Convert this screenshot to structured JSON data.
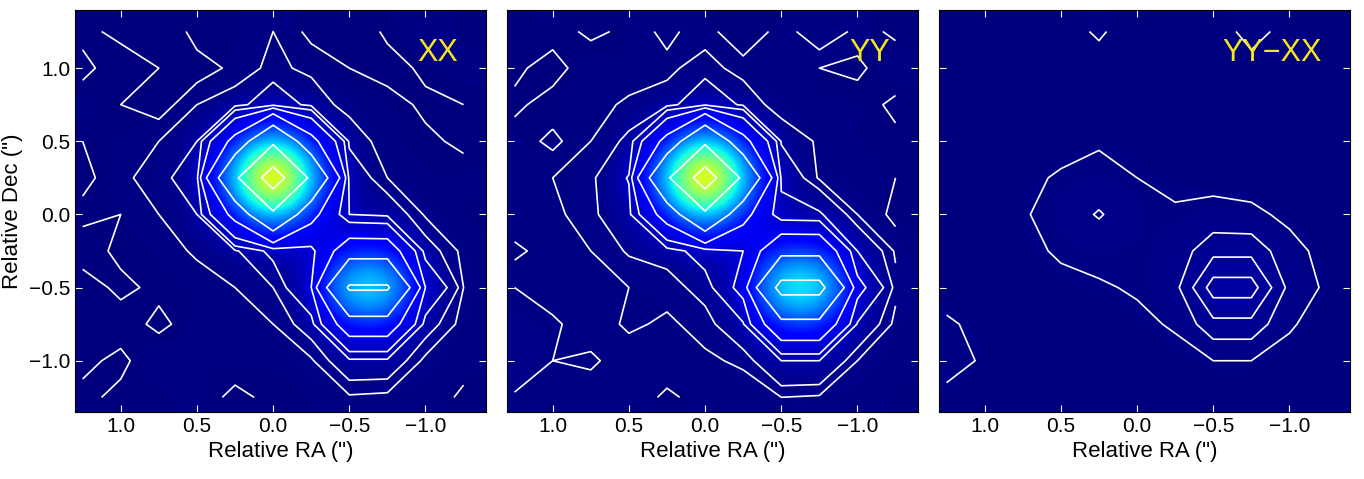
{
  "chart_data": [
    {
      "type": "heatmap",
      "title": "XX",
      "xlabel": "Relative RA (\")",
      "ylabel": "Relative Dec (\")",
      "x": [
        1.25,
        1.0,
        0.75,
        0.5,
        0.25,
        0.0,
        -0.25,
        -0.5,
        -0.75,
        -1.0,
        -1.25
      ],
      "y": [
        1.25,
        1.0,
        0.75,
        0.5,
        0.25,
        0.0,
        -0.25,
        -0.5,
        -0.75,
        -1.0,
        -1.25
      ],
      "cells": [
        [
          0.004,
          0.002,
          -0.002,
          0.005,
          0.003,
          0.006,
          0.002,
          -0.001,
          0.004,
          0.006,
          0.003
        ],
        [
          0.002,
          0.005,
          0.003,
          0.001,
          0.004,
          0.007,
          0.005,
          0.003,
          0.001,
          0.004,
          0.005
        ],
        [
          0.005,
          0.003,
          0.001,
          0.006,
          0.008,
          0.02,
          0.009,
          0.004,
          0.005,
          0.002,
          0.003
        ],
        [
          0.003,
          0.004,
          0.006,
          0.012,
          0.12,
          0.34,
          0.12,
          0.01,
          0.003,
          0.004,
          0.002
        ],
        [
          0.002,
          0.005,
          0.008,
          0.02,
          0.34,
          1.0,
          0.34,
          0.02,
          0.006,
          0.003,
          0.005
        ],
        [
          0.004,
          0.003,
          0.006,
          0.012,
          0.12,
          0.34,
          0.12,
          0.025,
          0.02,
          0.005,
          0.003
        ],
        [
          0.001,
          0.004,
          0.003,
          0.007,
          0.01,
          0.03,
          0.04,
          0.14,
          0.14,
          0.017,
          0.004
        ],
        [
          0.005,
          0.002,
          0.004,
          0.003,
          0.006,
          0.012,
          0.05,
          0.42,
          0.42,
          0.05,
          0.006
        ],
        [
          0.003,
          0.005,
          0.002,
          0.005,
          0.004,
          0.006,
          0.017,
          0.14,
          0.14,
          0.017,
          0.003
        ],
        [
          0.004,
          0.002,
          0.006,
          0.003,
          0.005,
          0.003,
          0.005,
          0.02,
          0.02,
          0.004,
          0.005
        ],
        [
          0.002,
          0.004,
          0.003,
          0.005,
          0.002,
          0.004,
          0.003,
          0.005,
          0.004,
          0.006,
          0.002
        ]
      ],
      "clim": [
        0,
        1.0
      ],
      "contour_levels": [
        0.003,
        0.006,
        0.012,
        0.025,
        0.05,
        0.1,
        0.2,
        0.4,
        0.8
      ],
      "xlim": [
        1.3,
        -1.4
      ],
      "ylim": [
        -1.35,
        1.4
      ],
      "xticks": [
        {
          "value": 1.0,
          "label": "1.0"
        },
        {
          "value": 0.5,
          "label": "0.5"
        },
        {
          "value": 0.0,
          "label": "0.0"
        },
        {
          "value": -0.5,
          "label": "−0.5"
        },
        {
          "value": -1.0,
          "label": "−1.0"
        }
      ],
      "yticks": [
        {
          "value": 1.0,
          "label": "1.0"
        },
        {
          "value": 0.5,
          "label": "0.5"
        },
        {
          "value": 0.0,
          "label": "0.0"
        },
        {
          "value": -0.5,
          "label": "−0.5"
        },
        {
          "value": -1.0,
          "label": "−1.0"
        }
      ]
    },
    {
      "type": "heatmap",
      "title": "YY",
      "xlabel": "Relative RA (\")",
      "tick_labels": "x",
      "x": [
        1.25,
        1.0,
        0.75,
        0.5,
        0.25,
        0.0,
        -0.25,
        -0.5,
        -0.75,
        -1.0,
        -1.25
      ],
      "y": [
        1.25,
        1.0,
        0.75,
        0.5,
        0.25,
        0.0,
        -0.25,
        -0.5,
        -0.75,
        -1.0,
        -1.25
      ],
      "cells": [
        [
          0.003,
          0.005,
          0.002,
          0.004,
          0.007,
          0.004,
          0.001,
          0.004,
          0.009,
          0.005,
          0.002
        ],
        [
          0.004,
          0.001,
          0.006,
          0.003,
          0.005,
          0.008,
          0.004,
          0.006,
          0.003,
          0.002,
          0.006
        ],
        [
          0.002,
          0.005,
          0.004,
          0.007,
          0.008,
          0.022,
          0.01,
          0.003,
          0.004,
          0.005,
          0.002
        ],
        [
          0.005,
          0.002,
          0.006,
          0.014,
          0.12,
          0.34,
          0.12,
          0.011,
          0.005,
          0.003,
          0.004
        ],
        [
          0.003,
          0.006,
          0.01,
          0.026,
          0.35,
          1.0,
          0.34,
          0.022,
          0.005,
          0.006,
          0.003
        ],
        [
          0.006,
          0.004,
          0.01,
          0.02,
          0.13,
          0.34,
          0.12,
          0.03,
          0.027,
          0.006,
          0.002
        ],
        [
          0.002,
          0.005,
          0.006,
          0.013,
          0.016,
          0.035,
          0.05,
          0.16,
          0.16,
          0.025,
          0.005
        ],
        [
          0.006,
          0.003,
          0.006,
          0.006,
          0.008,
          0.016,
          0.062,
          0.46,
          0.46,
          0.062,
          0.008
        ],
        [
          0.009,
          0.007,
          0.003,
          0.007,
          0.005,
          0.008,
          0.023,
          0.16,
          0.16,
          0.023,
          0.004
        ],
        [
          0.012,
          0.006,
          0.007,
          0.003,
          0.006,
          0.005,
          0.007,
          0.025,
          0.025,
          0.006,
          0.005
        ],
        [
          0.005,
          0.006,
          0.003,
          0.006,
          0.002,
          0.005,
          0.003,
          0.006,
          0.005,
          0.006,
          0.003
        ]
      ],
      "clim": [
        0,
        1.0
      ],
      "contour_levels": [
        0.003,
        0.006,
        0.012,
        0.025,
        0.05,
        0.1,
        0.2,
        0.4,
        0.8
      ],
      "xlim": [
        1.3,
        -1.4
      ],
      "ylim": [
        -1.35,
        1.4
      ],
      "xticks": [
        {
          "value": 1.0,
          "label": "1.0"
        },
        {
          "value": 0.5,
          "label": "0.5"
        },
        {
          "value": 0.0,
          "label": "0.0"
        },
        {
          "value": -0.5,
          "label": "−0.5"
        },
        {
          "value": -1.0,
          "label": "−1.0"
        }
      ],
      "yticks": [
        1.0,
        0.5,
        0.0,
        -0.5,
        -1.0
      ]
    },
    {
      "type": "heatmap",
      "title": "YY−XX",
      "xlabel": "Relative RA (\")",
      "tick_labels": "x",
      "x": [
        1.25,
        1.0,
        0.75,
        0.5,
        0.25,
        0.0,
        -0.25,
        -0.5,
        -0.75,
        -1.0,
        -1.25
      ],
      "y": [
        1.25,
        1.0,
        0.75,
        0.5,
        0.25,
        0.0,
        -0.25,
        -0.5,
        -0.75,
        -1.0,
        -1.25
      ],
      "cells": [
        [
          0.001,
          0.0,
          -0.002,
          0.002,
          0.006,
          0.001,
          -0.001,
          0.002,
          0.007,
          0.003,
          0.0
        ],
        [
          0.0,
          0.002,
          0.001,
          -0.001,
          0.002,
          0.001,
          0.0,
          0.001,
          0.003,
          0.001,
          -0.001
        ],
        [
          0.001,
          0.0,
          0.002,
          0.001,
          0.0,
          0.003,
          0.001,
          0.0,
          -0.001,
          0.0,
          0.001
        ],
        [
          0.0,
          0.001,
          0.0,
          0.002,
          0.004,
          0.003,
          0.001,
          0.0,
          0.001,
          0.002,
          0.0
        ],
        [
          0.002,
          0.0,
          0.003,
          0.006,
          0.008,
          0.005,
          0.003,
          0.002,
          0.001,
          0.0,
          0.001
        ],
        [
          0.001,
          0.002,
          0.004,
          0.009,
          0.016,
          0.008,
          0.006,
          0.008,
          0.007,
          0.003,
          0.001
        ],
        [
          0.0,
          0.001,
          0.003,
          0.006,
          0.008,
          0.006,
          0.009,
          0.022,
          0.022,
          0.008,
          0.002
        ],
        [
          0.002,
          0.001,
          0.002,
          0.003,
          0.004,
          0.006,
          0.012,
          0.04,
          0.04,
          0.012,
          0.003
        ],
        [
          0.006,
          0.003,
          0.001,
          0.002,
          0.002,
          0.003,
          0.006,
          0.022,
          0.022,
          0.006,
          0.001
        ],
        [
          0.008,
          0.004,
          0.001,
          0.0,
          0.001,
          0.002,
          0.002,
          0.005,
          0.005,
          0.002,
          0.0
        ],
        [
          0.003,
          0.002,
          0.0,
          0.001,
          0.0,
          0.001,
          0.0,
          0.001,
          0.001,
          0.0,
          0.001
        ]
      ],
      "clim": [
        0,
        1.0
      ],
      "contour_levels": [
        0.005,
        0.015,
        0.025,
        0.035
      ],
      "xlim": [
        1.3,
        -1.4
      ],
      "ylim": [
        -1.35,
        1.4
      ],
      "xticks": [
        {
          "value": 1.0,
          "label": "1.0"
        },
        {
          "value": 0.5,
          "label": "0.5"
        },
        {
          "value": 0.0,
          "label": "0.0"
        },
        {
          "value": -0.5,
          "label": "−0.5"
        },
        {
          "value": -1.0,
          "label": "−1.0"
        }
      ],
      "yticks": [
        1.0,
        0.5,
        0.0,
        -0.5,
        -1.0
      ]
    }
  ]
}
